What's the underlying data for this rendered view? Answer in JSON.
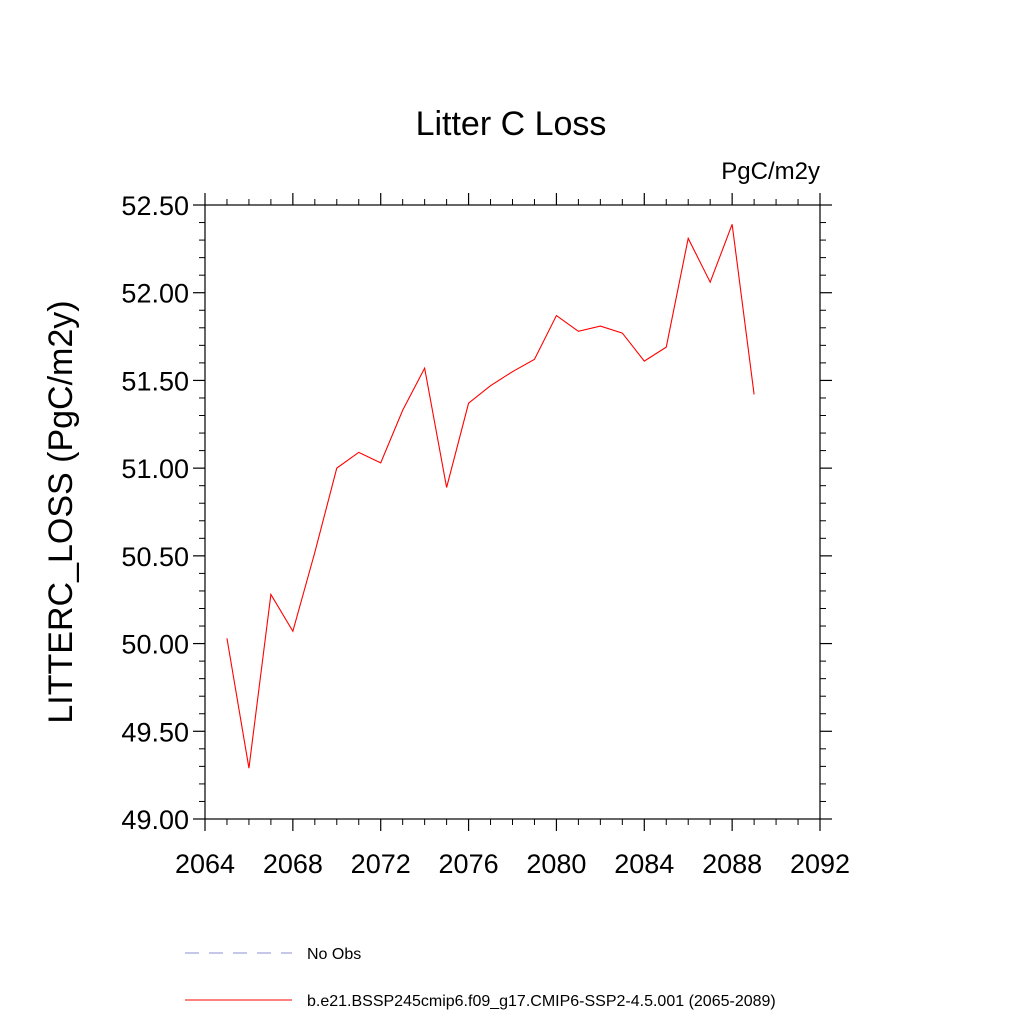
{
  "chart_data": {
    "type": "line",
    "title": "Litter C Loss",
    "units_label": "PgC/m2y",
    "ylabel": "LITTERC_LOSS  (PgC/m2y)",
    "xlabel": "",
    "xlim": [
      2064,
      2092
    ],
    "ylim": [
      49.0,
      52.5
    ],
    "x_ticks": [
      "2064",
      "2068",
      "2072",
      "2076",
      "2080",
      "2084",
      "2088",
      "2092"
    ],
    "y_ticks": [
      "49.00",
      "49.50",
      "50.00",
      "50.50",
      "51.00",
      "51.50",
      "52.00",
      "52.50"
    ],
    "grid": false,
    "legend_position": "bottom",
    "series": [
      {
        "name": "b.e21.BSSP245cmip6.f09_g17.CMIP6-SSP2-4.5.001 (2065-2089)",
        "color": "#ff0000",
        "style": "solid",
        "x": [
          2065,
          2066,
          2067,
          2068,
          2069,
          2070,
          2071,
          2072,
          2073,
          2074,
          2075,
          2076,
          2077,
          2078,
          2079,
          2080,
          2081,
          2082,
          2083,
          2084,
          2085,
          2086,
          2087,
          2088,
          2089
        ],
        "y": [
          50.03,
          49.29,
          50.28,
          50.07,
          50.52,
          51.0,
          51.09,
          51.03,
          51.33,
          51.57,
          50.89,
          51.37,
          51.47,
          51.55,
          51.62,
          51.87,
          51.78,
          51.81,
          51.77,
          51.61,
          51.69,
          52.31,
          52.06,
          52.39,
          51.42
        ]
      }
    ],
    "legend": [
      {
        "label": "No Obs",
        "color": "#8c8cd4",
        "style": "dashed"
      },
      {
        "label": "b.e21.BSSP245cmip6.f09_g17.CMIP6-SSP2-4.5.001 (2065-2089)",
        "color": "#ff0000",
        "style": "solid"
      }
    ]
  }
}
